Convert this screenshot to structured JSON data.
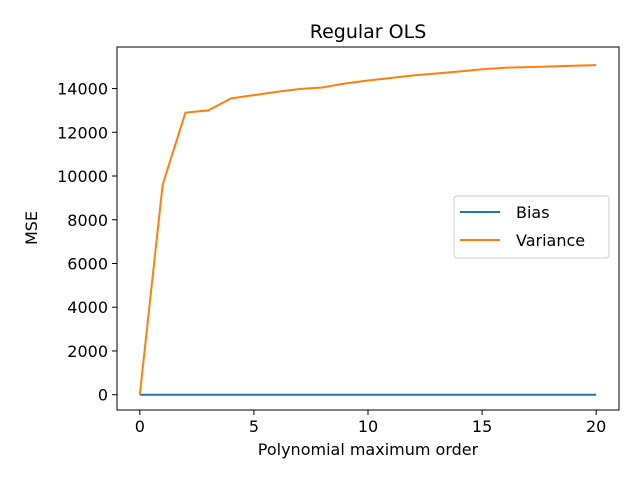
{
  "chart_data": {
    "type": "line",
    "title": "Regular OLS",
    "xlabel": "Polynomial maximum order",
    "ylabel": "MSE",
    "xlim": [
      -1,
      21
    ],
    "ylim": [
      -700,
      15900
    ],
    "xticks": [
      0,
      5,
      10,
      15,
      20
    ],
    "yticks": [
      0,
      2000,
      4000,
      6000,
      8000,
      10000,
      12000,
      14000
    ],
    "grid": false,
    "legend_position": "center-right",
    "x": [
      0,
      1,
      2,
      3,
      4,
      5,
      6,
      7,
      8,
      9,
      10,
      11,
      12,
      13,
      14,
      15,
      16,
      17,
      18,
      19,
      20
    ],
    "series": [
      {
        "name": "Bias",
        "color": "#1f77b4",
        "values": [
          0,
          0,
          0,
          0,
          0,
          0,
          0,
          0,
          0,
          0,
          0,
          0,
          0,
          0,
          0,
          0,
          0,
          0,
          0,
          0,
          0
        ]
      },
      {
        "name": "Variance",
        "color": "#ff7f0e",
        "values": [
          0,
          9600,
          12900,
          13000,
          13550,
          13700,
          13850,
          13980,
          14050,
          14230,
          14370,
          14480,
          14600,
          14690,
          14780,
          14880,
          14950,
          14980,
          15010,
          15040,
          15070
        ]
      }
    ]
  }
}
